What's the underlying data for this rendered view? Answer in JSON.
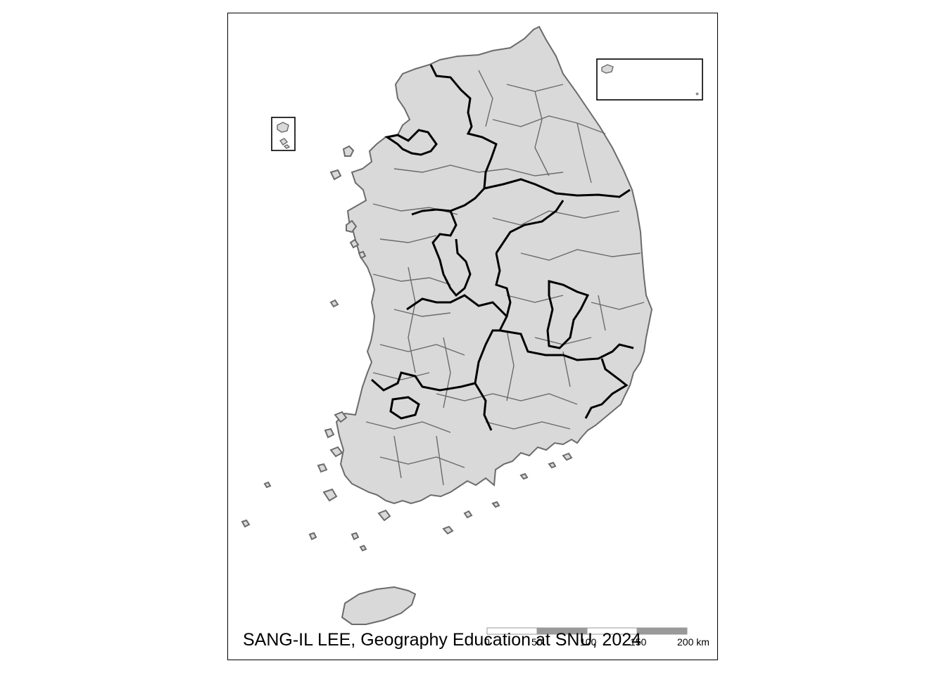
{
  "map": {
    "subject": "South Korea administrative districts (si-gun-gu) with province boundaries",
    "fill_color": "#d9d9d9",
    "district_border_color": "#6b6b6b",
    "province_border_color": "#000000",
    "insets": [
      "Ulleungdo / Dokdo inset (top-right)",
      "Baengnyeongdo inset (left)"
    ]
  },
  "scale_bar": {
    "labels": [
      "0",
      "50",
      "100",
      "150",
      "200 km"
    ],
    "colors": [
      "#ffffff",
      "#999999"
    ]
  },
  "credit": "SANG-IL LEE, Geography Education at SNU, 2024"
}
